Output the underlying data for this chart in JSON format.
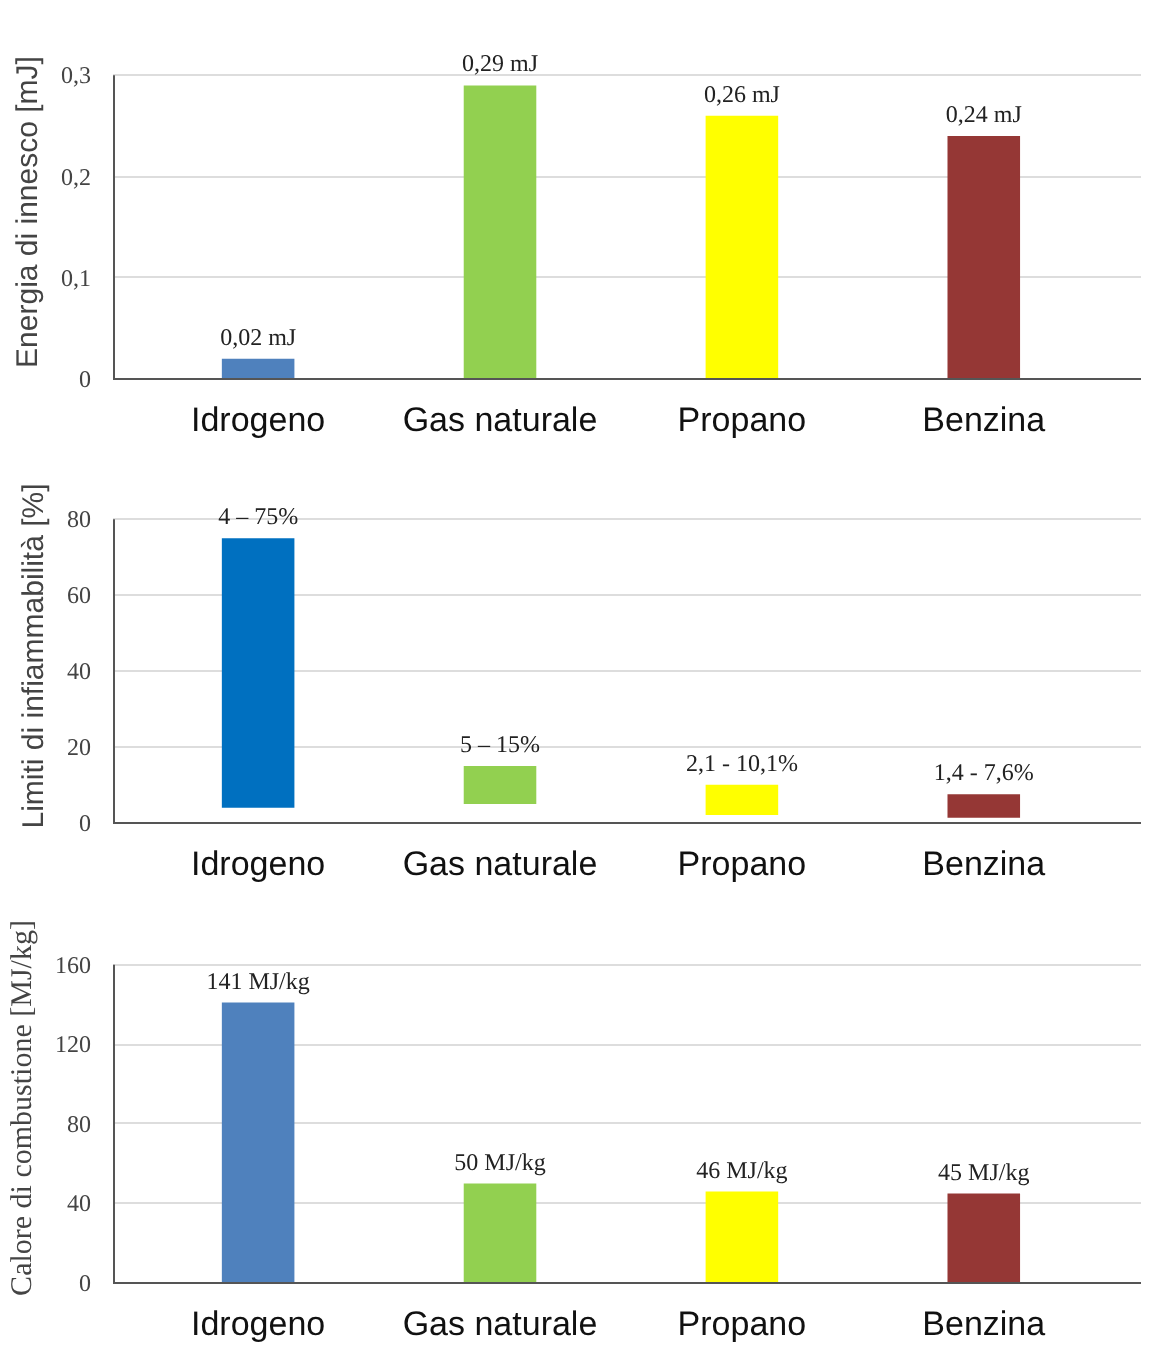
{
  "chart_data": [
    {
      "type": "bar",
      "ylabel": "Energia di innesco [mJ]",
      "categories": [
        "Idrogeno",
        "Gas naturale",
        "Propano",
        "Benzina"
      ],
      "values": [
        0.02,
        0.29,
        0.26,
        0.24
      ],
      "colors": [
        "#4f81bd",
        "#92d050",
        "#ffff00",
        "#953735"
      ],
      "value_labels": [
        "0,02 mJ",
        "0,29 mJ",
        "0,26 mJ",
        "0,24 mJ"
      ],
      "ylim": [
        0,
        0.3
      ],
      "yticks": [
        {
          "value": 0,
          "label": "0"
        },
        {
          "value": 0.1,
          "label": "0,1"
        },
        {
          "value": 0.2,
          "label": "0,2"
        },
        {
          "value": 0.3,
          "label": "0,3"
        }
      ],
      "grid": "y"
    },
    {
      "type": "bar",
      "ylabel": "Limiti di infiammabilità [%]",
      "categories": [
        "Idrogeno",
        "Gas naturale",
        "Propano",
        "Benzina"
      ],
      "base": [
        4,
        5,
        2.1,
        1.4
      ],
      "values": [
        71,
        10,
        8,
        6.2
      ],
      "colors": [
        "#0070c0",
        "#92d050",
        "#ffff00",
        "#953735"
      ],
      "annotations": [
        {
          "text": "4 – 75%",
          "x": "Idrogeno",
          "y": 75
        },
        {
          "text": "5 – 15%",
          "x": "Gas naturale",
          "y": 15
        },
        {
          "text": "2,1 - 10,1%",
          "x": "Propano",
          "y": 10.1
        },
        {
          "text": "1,4 - 7,6%",
          "x": "Benzina",
          "y": 7.6
        }
      ],
      "ylim": [
        0,
        80
      ],
      "yticks": [
        0,
        20,
        40,
        60,
        80
      ],
      "grid": "y"
    },
    {
      "type": "bar",
      "ylabel": "Calore di combustione [MJ/kg]",
      "categories": [
        "Idrogeno",
        "Gas naturale",
        "Propano",
        "Benzina"
      ],
      "values": [
        141,
        50,
        46,
        45
      ],
      "colors": [
        "#4f81bd",
        "#92d050",
        "#ffff00",
        "#953735"
      ],
      "value_labels": [
        "141 MJ/kg",
        "50 MJ/kg",
        "46 MJ/kg",
        "45 MJ/kg"
      ],
      "ylim": [
        0,
        160
      ],
      "yticks": [
        0,
        40,
        80,
        120,
        160
      ],
      "grid": "y"
    }
  ]
}
